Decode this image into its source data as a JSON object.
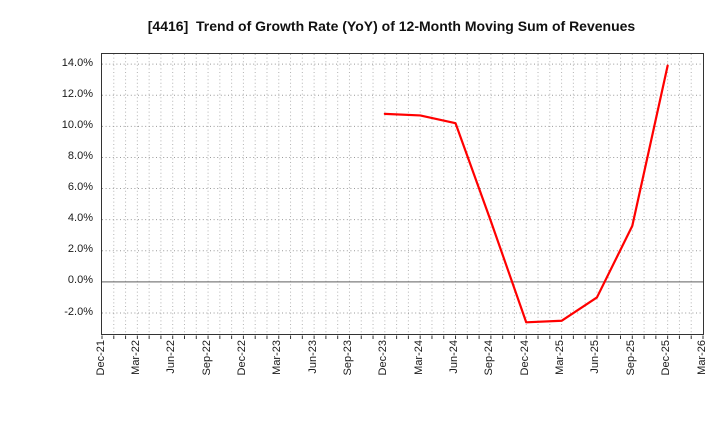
{
  "header": {
    "title": "[4416]  Trend of Growth Rate (YoY) of 12-Month Moving Sum of Revenues"
  },
  "chart_data": {
    "type": "line",
    "title": "[4416]  Trend of Growth Rate (YoY) of 12-Month Moving Sum of Revenues",
    "xlabel": "",
    "ylabel": "",
    "legend": "none",
    "x_tick_labels": [
      "Dec-21",
      "Mar-22",
      "Jun-22",
      "Sep-22",
      "Dec-22",
      "Mar-23",
      "Jun-23",
      "Sep-23",
      "Dec-23",
      "Mar-24",
      "Jun-24",
      "Sep-24",
      "Dec-24",
      "Mar-25",
      "Jun-25",
      "Sep-25",
      "Dec-25",
      "Mar-26"
    ],
    "y_ticks": [
      14,
      12,
      10,
      8,
      6,
      4,
      2,
      0,
      -2
    ],
    "y_tick_suffix": "%",
    "ylim": [
      -3.35,
      14.65
    ],
    "grid": true,
    "minor_vertical_divisions_per_interval": 3,
    "series": [
      {
        "color": "#ff0000",
        "points": [
          [
            "Dec-23",
            10.8
          ],
          [
            "Mar-24",
            10.7
          ],
          [
            "Jun-24",
            10.2
          ],
          [
            "Sep-24",
            3.9
          ],
          [
            "Dec-24",
            -2.6
          ],
          [
            "Mar-25",
            -2.5
          ],
          [
            "Jun-25",
            -1.0
          ],
          [
            "Sep-25",
            3.6
          ],
          [
            "Dec-25",
            13.9
          ]
        ]
      }
    ],
    "styles": {
      "line_color": "#ff0000",
      "h_grid_color": "#999999",
      "v_grid_color": "#b3b3b3",
      "zero_line_color": "#7f7f7f",
      "axis_border_color": "#333333",
      "tick_color": "#333333",
      "label_color": "#1a1a1a",
      "title_color": "#111111",
      "background": "#ffffff"
    }
  }
}
